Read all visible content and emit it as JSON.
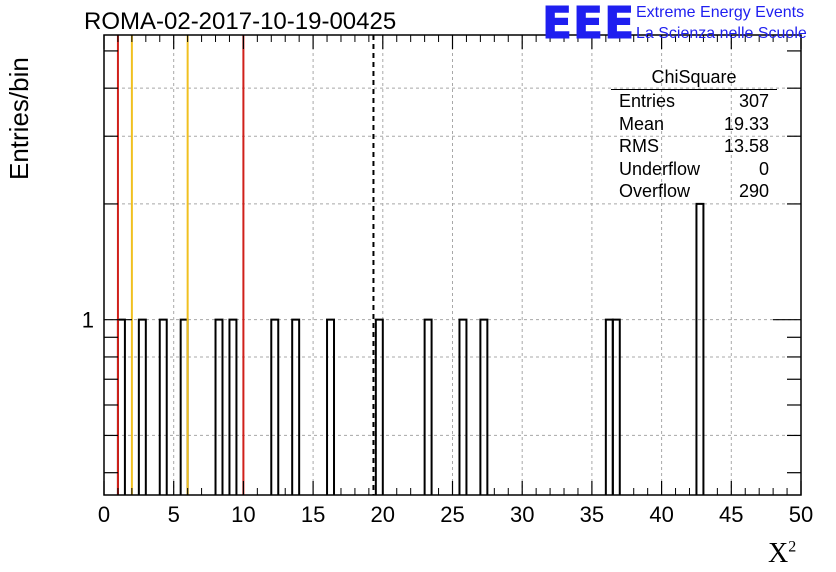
{
  "title": "ROMA-02-2017-10-19-00425",
  "logo": {
    "mark": "EEE",
    "line1": "Extreme Energy Events",
    "line2": "La Scienza nelle Scuole"
  },
  "stats_box": {
    "title": "ChiSquare",
    "rows": [
      {
        "label": "Entries",
        "value": "307"
      },
      {
        "label": "Mean",
        "value": "19.33"
      },
      {
        "label": "RMS",
        "value": "13.58"
      },
      {
        "label": "Underflow",
        "value": "0"
      },
      {
        "label": "Overflow",
        "value": "290"
      }
    ]
  },
  "chart_data": {
    "type": "bar",
    "xlabel": "X",
    "xlabel_sup": "2",
    "ylabel": "Entries/bin",
    "xlim": [
      0,
      50
    ],
    "ylim_log": [
      0.35,
      5.5
    ],
    "log_y": true,
    "grid": true,
    "bin_width": 0.5,
    "x_ticks": [
      "0",
      "5",
      "10",
      "15",
      "20",
      "25",
      "30",
      "35",
      "40",
      "45",
      "50"
    ],
    "y_tick_label": "1",
    "bins": [
      {
        "x": 1.0,
        "count": 1
      },
      {
        "x": 2.5,
        "count": 1
      },
      {
        "x": 4.0,
        "count": 1
      },
      {
        "x": 5.5,
        "count": 1
      },
      {
        "x": 8.0,
        "count": 1
      },
      {
        "x": 9.0,
        "count": 1
      },
      {
        "x": 12.0,
        "count": 1
      },
      {
        "x": 13.5,
        "count": 1
      },
      {
        "x": 16.0,
        "count": 1
      },
      {
        "x": 19.5,
        "count": 1
      },
      {
        "x": 23.0,
        "count": 1
      },
      {
        "x": 25.5,
        "count": 1
      },
      {
        "x": 27.0,
        "count": 1
      },
      {
        "x": 36.0,
        "count": 1
      },
      {
        "x": 36.5,
        "count": 1
      },
      {
        "x": 42.5,
        "count": 2
      }
    ],
    "vertical_lines": [
      {
        "x": 1.0,
        "color": "#d0201a",
        "style": "solid"
      },
      {
        "x": 2.0,
        "color": "#f0c020",
        "style": "solid"
      },
      {
        "x": 6.0,
        "color": "#f0c020",
        "style": "solid"
      },
      {
        "x": 10.0,
        "color": "#d0201a",
        "style": "solid"
      },
      {
        "x": 19.33,
        "color": "#000000",
        "style": "dashed"
      }
    ]
  }
}
